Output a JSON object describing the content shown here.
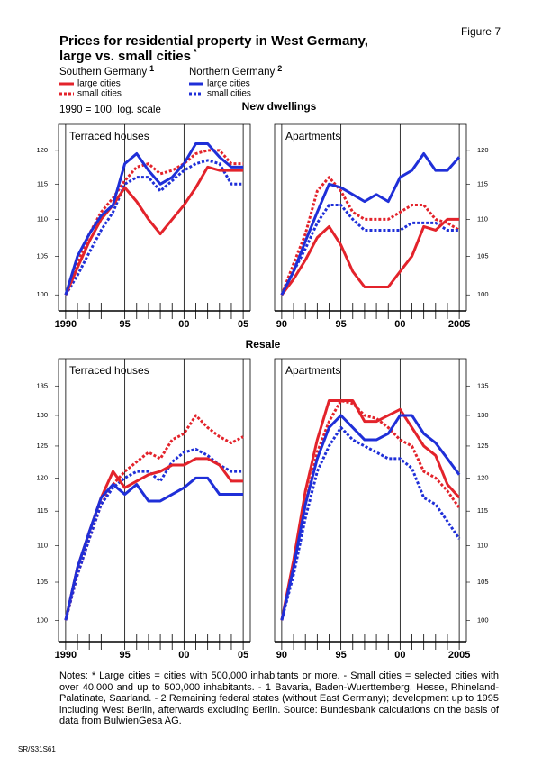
{
  "figure_label": "Figure 7",
  "title": [
    "Prices for residential property in West Germany,",
    "large vs. small cities"
  ],
  "title_note": "*",
  "legend": [
    {
      "title": "Southern Germany",
      "note": "1",
      "items": [
        {
          "name": "large cities",
          "color": "#e3232b",
          "dashed": false
        },
        {
          "name": "small cities",
          "color": "#e3232b",
          "dashed": true
        }
      ]
    },
    {
      "title": "Northern Germany",
      "note": "2",
      "items": [
        {
          "name": "large cities",
          "color": "#1f2fd8",
          "dashed": false
        },
        {
          "name": "small cities",
          "color": "#1f2fd8",
          "dashed": true
        }
      ]
    }
  ],
  "scale_note": "1990 = 100, log. scale",
  "sections": [
    "New dwellings",
    "Resale"
  ],
  "notes": "Notes: * Large cities = cities with 500,000 inhabitants or more. - Small cities = selected cities with over 40,000 and up to 500,000 inhabitants. - 1 Bavaria, Baden-Wuerttemberg, Hesse, Rhineland-Palatinate, Saarland. - 2 Remaining federal states (without East Germany); development up to 1995 including West Berlin, afterwards excluding Berlin. Source: Bundesbank calculations on the basis of data from BulwienGesa AG.",
  "code": "SR/S31S61",
  "chart_data": [
    {
      "type": "line",
      "title": "Terraced houses",
      "log_scale": true,
      "y_axis_side": "left",
      "x": [
        1990,
        1991,
        1992,
        1993,
        1994,
        1995,
        1996,
        1997,
        1998,
        1999,
        2000,
        2001,
        2002,
        2003,
        2004,
        2005
      ],
      "xlim": [
        1989.4,
        2005.6
      ],
      "xticks": [
        1990,
        {
          "value": 1995,
          "label": "95"
        },
        {
          "value": 2000,
          "label": "00"
        },
        {
          "value": 2005,
          "label": "05"
        }
      ],
      "xminor": [
        1991,
        1992,
        1993,
        1994,
        1996,
        1997,
        1998,
        1999,
        2001,
        2002,
        2003,
        2004
      ],
      "ylim": [
        98,
        124
      ],
      "yticks": [
        100,
        105,
        110,
        115,
        120
      ],
      "series": [
        {
          "color": "#e3232b",
          "dashed": true,
          "values": [
            100,
            104,
            108,
            111,
            113,
            115.5,
            117.5,
            118,
            116.5,
            117,
            118,
            119.5,
            120,
            120,
            118,
            118
          ]
        },
        {
          "color": "#1f2fd8",
          "dashed": true,
          "values": [
            100,
            102.5,
            105.5,
            108.5,
            111,
            115,
            116,
            116,
            114,
            115.5,
            117,
            118,
            118.5,
            118,
            115,
            115
          ]
        },
        {
          "color": "#e3232b",
          "dashed": false,
          "values": [
            100,
            103.5,
            107,
            110,
            112,
            114.5,
            112.5,
            110,
            108,
            110,
            112,
            114.5,
            117.5,
            117,
            117,
            117
          ]
        },
        {
          "color": "#1f2fd8",
          "dashed": false,
          "values": [
            100,
            105,
            108,
            110.5,
            112,
            118,
            119.5,
            117,
            115,
            116,
            118,
            121,
            121,
            119,
            117.5,
            117.5
          ]
        }
      ]
    },
    {
      "type": "line",
      "title": "Apartments",
      "log_scale": true,
      "y_axis_side": "right",
      "x": [
        1990,
        1991,
        1992,
        1993,
        1994,
        1995,
        1996,
        1997,
        1998,
        1999,
        2000,
        2001,
        2002,
        2003,
        2004,
        2005
      ],
      "xlim": [
        1989.4,
        2005.6
      ],
      "xticks": [
        {
          "value": 1990,
          "label": "90"
        },
        {
          "value": 1995,
          "label": "95"
        },
        {
          "value": 2000,
          "label": "00"
        },
        2005
      ],
      "xminor": [
        1991,
        1992,
        1993,
        1994,
        1996,
        1997,
        1998,
        1999,
        2001,
        2002,
        2003,
        2004
      ],
      "ylim": [
        98,
        124
      ],
      "yticks": [
        100,
        105,
        110,
        115,
        120
      ],
      "series": [
        {
          "color": "#e3232b",
          "dashed": true,
          "values": [
            100,
            104,
            108,
            114,
            116,
            114,
            111,
            110,
            110,
            110,
            111,
            112,
            112,
            110,
            109.5,
            108.5
          ]
        },
        {
          "color": "#1f2fd8",
          "dashed": true,
          "values": [
            100,
            103,
            106,
            109.5,
            112,
            112,
            110,
            108.5,
            108.5,
            108.5,
            108.5,
            109.5,
            109.5,
            109.5,
            108.5,
            108.5
          ]
        },
        {
          "color": "#e3232b",
          "dashed": false,
          "values": [
            100,
            102,
            104.5,
            107.5,
            109,
            106.5,
            103,
            101,
            101,
            101,
            103,
            105,
            109,
            108.5,
            110,
            110
          ]
        },
        {
          "color": "#1f2fd8",
          "dashed": false,
          "values": [
            100,
            103,
            107,
            111,
            115,
            114.5,
            113.5,
            112.5,
            113.5,
            112.5,
            116,
            117,
            119.5,
            117,
            117,
            119
          ]
        }
      ]
    },
    {
      "type": "line",
      "title": "Terraced houses",
      "log_scale": true,
      "y_axis_side": "left",
      "x": [
        1990,
        1991,
        1992,
        1993,
        1994,
        1995,
        1996,
        1997,
        1998,
        1999,
        2000,
        2001,
        2002,
        2003,
        2004,
        2005
      ],
      "xlim": [
        1989.4,
        2005.6
      ],
      "xticks": [
        1990,
        {
          "value": 1995,
          "label": "95"
        },
        {
          "value": 2000,
          "label": "00"
        },
        {
          "value": 2005,
          "label": "05"
        }
      ],
      "xminor": [
        1991,
        1992,
        1993,
        1994,
        1996,
        1997,
        1998,
        1999,
        2001,
        2002,
        2003,
        2004
      ],
      "ylim": [
        97.3,
        139.8
      ],
      "yticks": [
        100,
        105,
        110,
        115,
        120,
        125,
        130,
        135
      ],
      "series": [
        {
          "color": "#e3232b",
          "dashed": true,
          "values": [
            100,
            106,
            111,
            116,
            119,
            121,
            122.5,
            124,
            123,
            126,
            127,
            130,
            128,
            126.5,
            125.5,
            126.5
          ]
        },
        {
          "color": "#1f2fd8",
          "dashed": true,
          "values": [
            100,
            106,
            111,
            116,
            118.5,
            120,
            121,
            121,
            119.5,
            122.5,
            124,
            124.5,
            123.5,
            122,
            121,
            121
          ]
        },
        {
          "color": "#e3232b",
          "dashed": false,
          "values": [
            100,
            107,
            112,
            117,
            121,
            118.5,
            119.5,
            120.5,
            121,
            122,
            122,
            123,
            123,
            122,
            119.5,
            119.5
          ]
        },
        {
          "color": "#1f2fd8",
          "dashed": false,
          "values": [
            100,
            107,
            112,
            117,
            119,
            117.5,
            119,
            116.5,
            116.5,
            117.5,
            118.5,
            120,
            120,
            117.5,
            117.5,
            117.5
          ]
        }
      ]
    },
    {
      "type": "line",
      "title": "Apartments",
      "log_scale": true,
      "y_axis_side": "right",
      "x": [
        1990,
        1991,
        1992,
        1993,
        1994,
        1995,
        1996,
        1997,
        1998,
        1999,
        2000,
        2001,
        2002,
        2003,
        2004,
        2005
      ],
      "xlim": [
        1989.4,
        2005.6
      ],
      "xticks": [
        {
          "value": 1990,
          "label": "90"
        },
        {
          "value": 1995,
          "label": "95"
        },
        {
          "value": 2000,
          "label": "00"
        },
        2005
      ],
      "xminor": [
        1991,
        1992,
        1993,
        1994,
        1996,
        1997,
        1998,
        1999,
        2001,
        2002,
        2003,
        2004
      ],
      "ylim": [
        97.3,
        139.8
      ],
      "yticks": [
        100,
        105,
        110,
        115,
        120,
        125,
        130,
        135
      ],
      "series": [
        {
          "color": "#e3232b",
          "dashed": true,
          "values": [
            100,
            107,
            116,
            124,
            129,
            132.5,
            132,
            130,
            129.5,
            128,
            126,
            125,
            121,
            120,
            118,
            115.5
          ]
        },
        {
          "color": "#1f2fd8",
          "dashed": true,
          "values": [
            100,
            106,
            114,
            121,
            125,
            128,
            126,
            125,
            124,
            123,
            123,
            121.5,
            117,
            116,
            113.5,
            111
          ]
        },
        {
          "color": "#e3232b",
          "dashed": false,
          "values": [
            100,
            108,
            118,
            126,
            132.5,
            132.5,
            132.5,
            129,
            129,
            130,
            131,
            128,
            125,
            123.5,
            119,
            117
          ]
        },
        {
          "color": "#1f2fd8",
          "dashed": false,
          "values": [
            100,
            107,
            116,
            123,
            128,
            130,
            128,
            126,
            126,
            127,
            130,
            130,
            127,
            125.5,
            123,
            120.5
          ]
        }
      ]
    }
  ]
}
